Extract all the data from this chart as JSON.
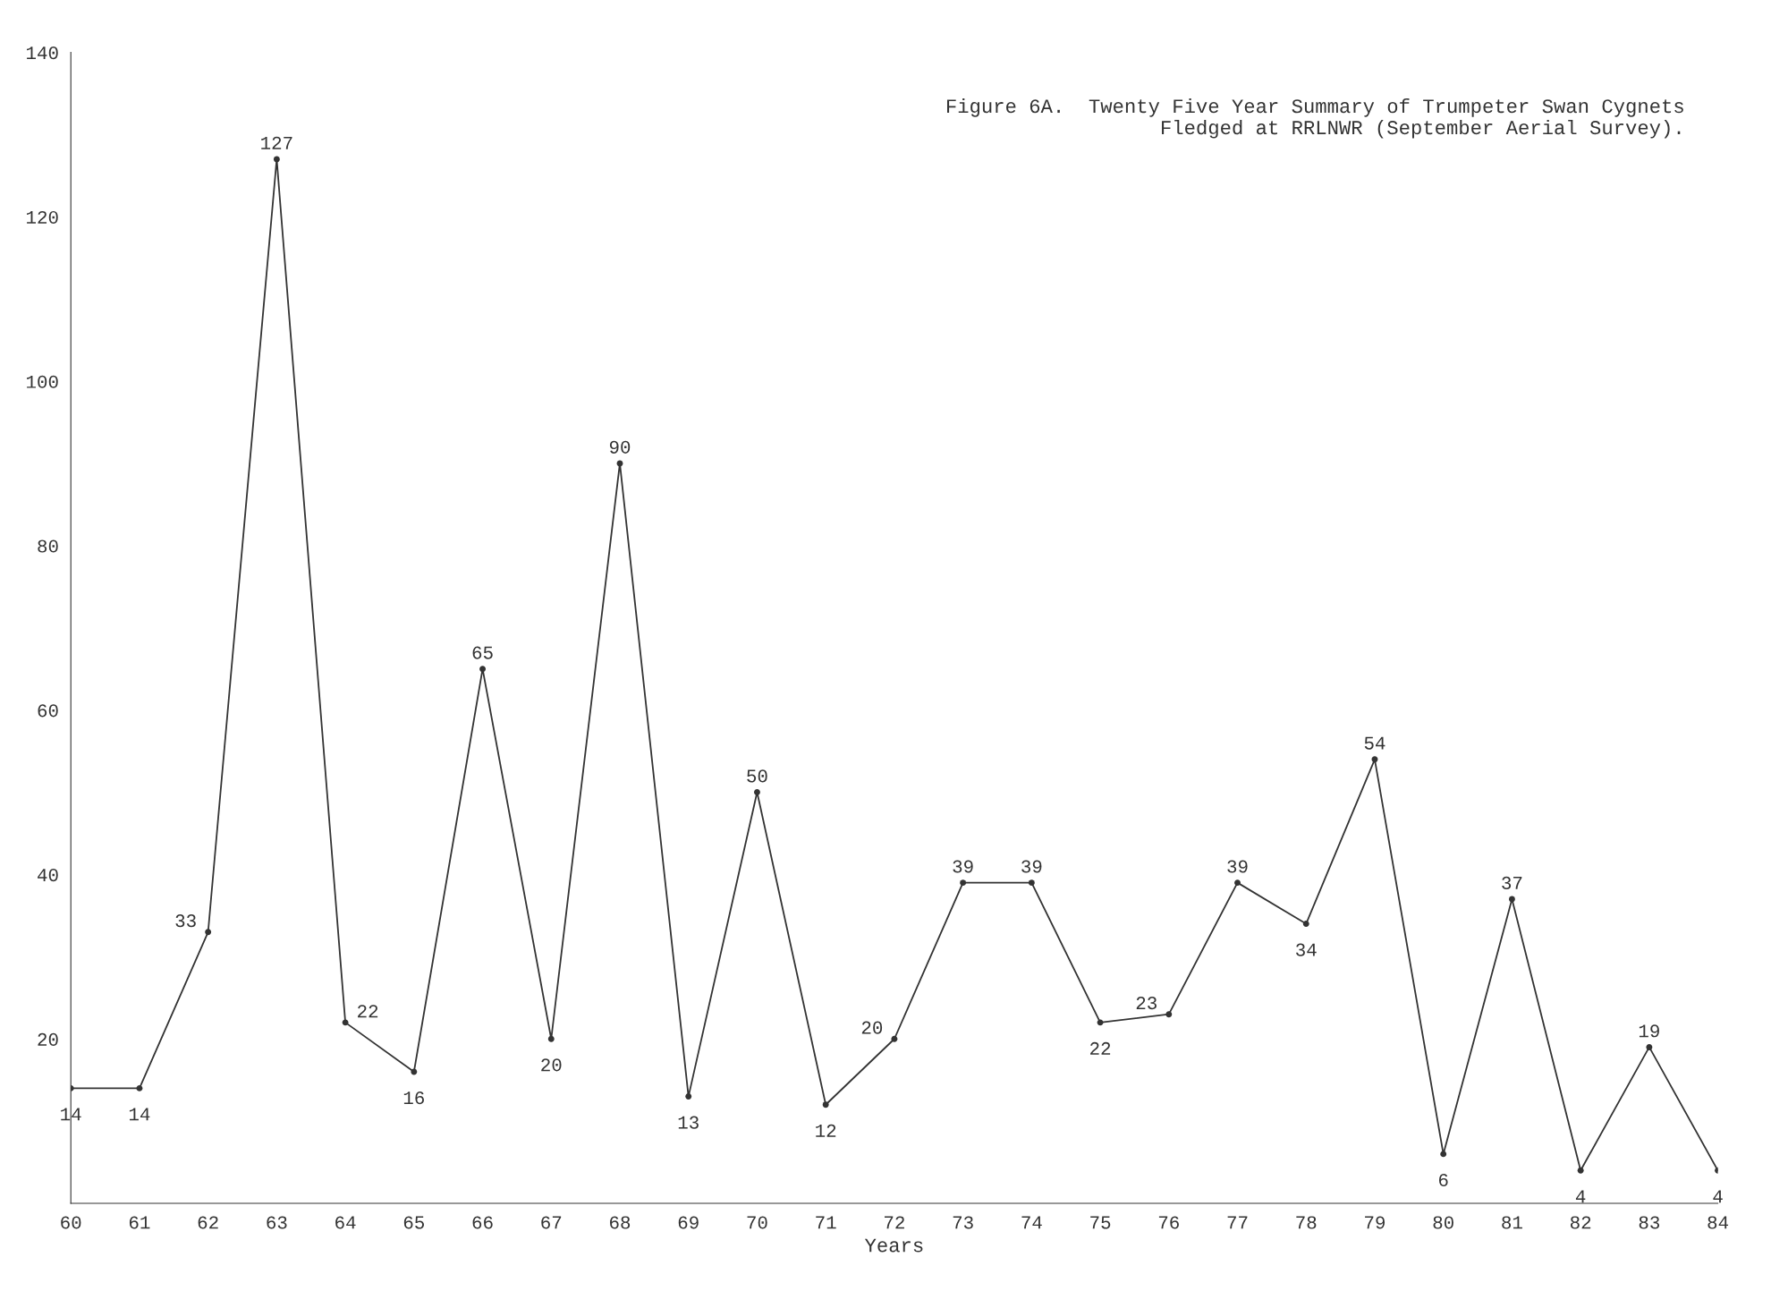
{
  "chart_data": {
    "type": "line",
    "title": "Figure 6A.  Twenty Five Year Summary of Trumpeter Swan Cygnets\n            Fledged at RRLNWR (September Aerial Survey).",
    "xlabel": "Years",
    "x": [
      60,
      61,
      62,
      63,
      64,
      65,
      66,
      67,
      68,
      69,
      70,
      71,
      72,
      73,
      74,
      75,
      76,
      77,
      78,
      79,
      80,
      81,
      82,
      83,
      84
    ],
    "series": [
      {
        "color": "#333333",
        "values": [
          14,
          14,
          33,
          127,
          22,
          16,
          65,
          20,
          90,
          13,
          50,
          12,
          20,
          39,
          39,
          22,
          23,
          39,
          34,
          54,
          6,
          37,
          4,
          19,
          4
        ]
      }
    ],
    "xlim": [
      60,
      84
    ],
    "xticks": [
      60,
      61,
      62,
      63,
      64,
      65,
      66,
      67,
      68,
      69,
      70,
      71,
      72,
      73,
      74,
      75,
      76,
      77,
      78,
      79,
      80,
      81,
      82,
      83,
      84
    ],
    "ylim": [
      0,
      140
    ],
    "yticks": [
      20,
      40,
      60,
      80,
      100,
      120,
      140
    ],
    "marker": "circle",
    "line_style": "solid",
    "data_labels": true,
    "grid": false,
    "legend": false
  }
}
